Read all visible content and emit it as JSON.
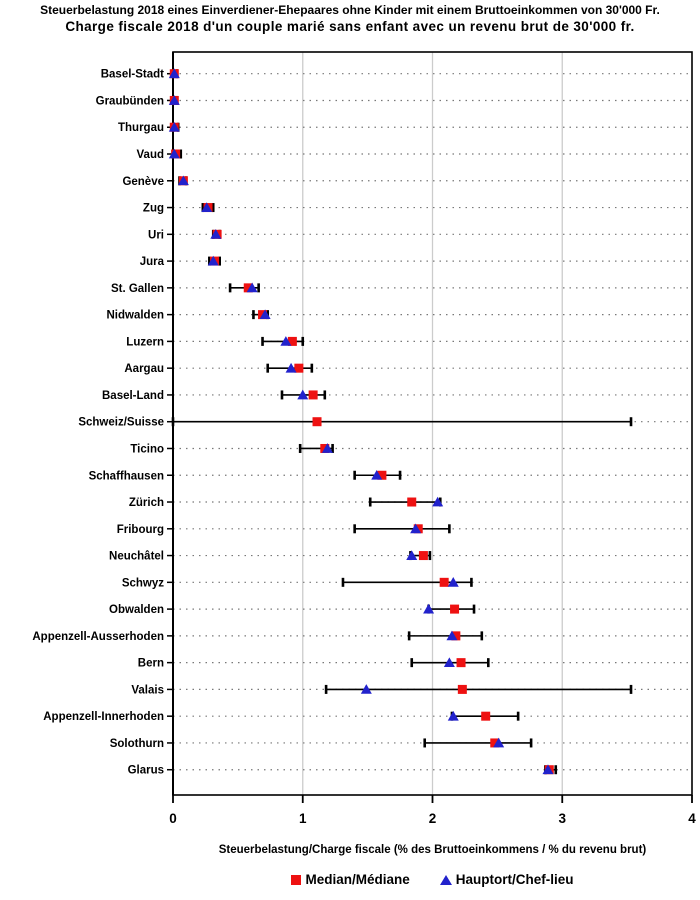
{
  "title_de": "Steuerbelastung 2018 eines Einverdiener-Ehepaares ohne Kinder mit einem Bruttoeinkommen von 30'000 Fr.",
  "title_fr": "Charge fiscale 2018 d'un couple marié sans enfant avec un revenu brut de 30'000 fr.",
  "theme": {
    "median_red": "#ee1111",
    "hauptort_blue": "#2222cc",
    "gridline_gray": "#cccccc",
    "dotted_row_line": "#787878",
    "frame_black": "#000000",
    "background": "#ffffff"
  },
  "chart_data": {
    "type": "scatter",
    "subtype": "horizontal-dot-range-plot",
    "title": "Steuerbelastung 2018 / Charge fiscale 2018 (Bruttoeinkommen 30'000 Fr.)",
    "xlabel": "Steuerbelastung/Charge fiscale (% des Bruttoeinkommens / % du revenu brut)",
    "ylabel": "",
    "xlim": [
      0,
      4
    ],
    "xticks": [
      "0",
      "1",
      "2",
      "3",
      "4"
    ],
    "grid": {
      "vertical_solid_at": [
        1,
        2,
        3
      ],
      "horizontal_dotted": true
    },
    "legend_position": "bottom",
    "legend": [
      {
        "label": "Median/Médiane",
        "marker": "square",
        "color": "#ee1111"
      },
      {
        "label": "Hauptort/Chef-lieu",
        "marker": "triangle",
        "color": "#2222cc"
      }
    ],
    "rows": [
      {
        "canton": "Basel-Stadt",
        "median": 0.01,
        "hauptort": 0.01,
        "min": 0.0,
        "max": 0.03
      },
      {
        "canton": "Graubünden",
        "median": 0.01,
        "hauptort": 0.01,
        "min": 0.0,
        "max": 0.03
      },
      {
        "canton": "Thurgau",
        "median": 0.01,
        "hauptort": 0.01,
        "min": 0.0,
        "max": 0.04
      },
      {
        "canton": "Vaud",
        "median": 0.02,
        "hauptort": 0.01,
        "min": 0.0,
        "max": 0.06
      },
      {
        "canton": "Genève",
        "median": 0.08,
        "hauptort": 0.08,
        "min": 0.05,
        "max": 0.1
      },
      {
        "canton": "Zug",
        "median": 0.27,
        "hauptort": 0.26,
        "min": 0.23,
        "max": 0.31
      },
      {
        "canton": "Uri",
        "median": 0.34,
        "hauptort": 0.33,
        "min": 0.31,
        "max": 0.36
      },
      {
        "canton": "Jura",
        "median": 0.32,
        "hauptort": 0.31,
        "min": 0.28,
        "max": 0.36
      },
      {
        "canton": "St. Gallen",
        "median": 0.58,
        "hauptort": 0.61,
        "min": 0.44,
        "max": 0.66
      },
      {
        "canton": "Nidwalden",
        "median": 0.69,
        "hauptort": 0.71,
        "min": 0.62,
        "max": 0.73
      },
      {
        "canton": "Luzern",
        "median": 0.92,
        "hauptort": 0.87,
        "min": 0.69,
        "max": 1.0
      },
      {
        "canton": "Aargau",
        "median": 0.97,
        "hauptort": 0.91,
        "min": 0.73,
        "max": 1.07
      },
      {
        "canton": "Basel-Land",
        "median": 1.08,
        "hauptort": 1.0,
        "min": 0.84,
        "max": 1.17
      },
      {
        "canton": "Schweiz/Suisse",
        "median": 1.11,
        "hauptort": null,
        "min": 0.0,
        "max": 3.53
      },
      {
        "canton": "Ticino",
        "median": 1.17,
        "hauptort": 1.19,
        "min": 0.98,
        "max": 1.23
      },
      {
        "canton": "Schaffhausen",
        "median": 1.61,
        "hauptort": 1.57,
        "min": 1.4,
        "max": 1.75
      },
      {
        "canton": "Zürich",
        "median": 1.84,
        "hauptort": 2.04,
        "min": 1.52,
        "max": 2.06
      },
      {
        "canton": "Fribourg",
        "median": 1.89,
        "hauptort": 1.87,
        "min": 1.4,
        "max": 2.13
      },
      {
        "canton": "Neuchâtel",
        "median": 1.93,
        "hauptort": 1.84,
        "min": 1.83,
        "max": 1.98
      },
      {
        "canton": "Schwyz",
        "median": 2.09,
        "hauptort": 2.16,
        "min": 1.31,
        "max": 2.3
      },
      {
        "canton": "Obwalden",
        "median": 2.17,
        "hauptort": 1.97,
        "min": 1.97,
        "max": 2.32
      },
      {
        "canton": "Appenzell-Ausserhoden",
        "median": 2.18,
        "hauptort": 2.15,
        "min": 1.82,
        "max": 2.38
      },
      {
        "canton": "Bern",
        "median": 2.22,
        "hauptort": 2.13,
        "min": 1.84,
        "max": 2.43
      },
      {
        "canton": "Valais",
        "median": 2.23,
        "hauptort": 1.49,
        "min": 1.18,
        "max": 3.53
      },
      {
        "canton": "Appenzell-Innerhoden",
        "median": 2.41,
        "hauptort": 2.16,
        "min": 2.15,
        "max": 2.66
      },
      {
        "canton": "Solothurn",
        "median": 2.48,
        "hauptort": 2.51,
        "min": 1.94,
        "max": 2.76
      },
      {
        "canton": "Glarus",
        "median": 2.9,
        "hauptort": 2.89,
        "min": 2.87,
        "max": 2.95
      }
    ]
  }
}
